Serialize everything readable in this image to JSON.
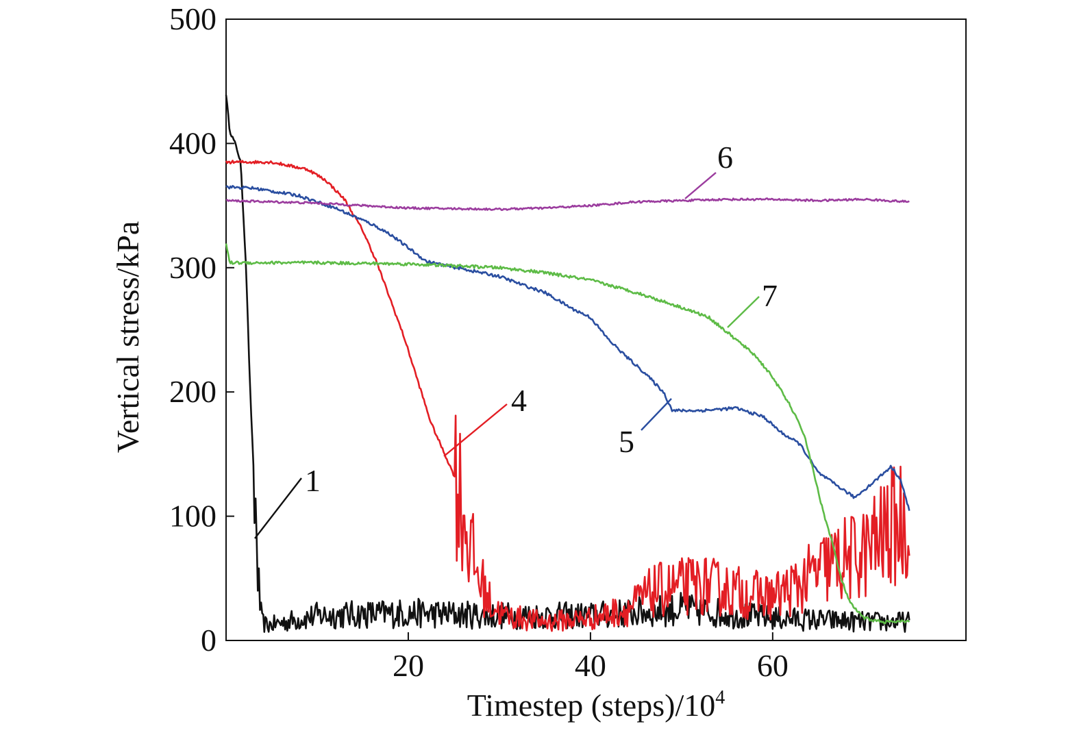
{
  "chart_data": {
    "type": "line",
    "title": "",
    "xlabel_main": "Timestep (steps)/10",
    "xlabel_sup": "4",
    "ylabel": "Vertical stress/kPa",
    "xlim": [
      0,
      80
    ],
    "ylim": [
      0,
      500
    ],
    "xticks": [
      20,
      40,
      60
    ],
    "xtick_labels": [
      "20",
      "40",
      "60"
    ],
    "yticks": [
      0,
      100,
      200,
      300,
      400,
      500
    ],
    "ytick_labels": [
      "0",
      "100",
      "200",
      "300",
      "400",
      "500"
    ],
    "grid": false,
    "series": [
      {
        "name": "1",
        "color": "#111111",
        "noisy_tail": true,
        "points": [
          [
            0,
            440
          ],
          [
            0.4,
            410
          ],
          [
            1.0,
            400
          ],
          [
            1.6,
            385
          ],
          [
            2.2,
            300
          ],
          [
            2.6,
            210
          ],
          [
            3.0,
            140
          ],
          [
            3.3,
            90
          ],
          [
            3.6,
            40
          ],
          [
            3.9,
            15
          ],
          [
            4.5,
            12
          ],
          [
            10,
            20
          ],
          [
            20,
            22
          ],
          [
            30,
            20
          ],
          [
            40,
            20
          ],
          [
            50,
            25
          ],
          [
            60,
            18
          ],
          [
            70,
            15
          ],
          [
            75,
            15
          ]
        ]
      },
      {
        "name": "4",
        "color": "#e31e24",
        "noisy_tail": true,
        "points": [
          [
            0,
            385
          ],
          [
            5,
            385
          ],
          [
            9,
            379
          ],
          [
            11,
            370
          ],
          [
            13,
            355
          ],
          [
            15,
            330
          ],
          [
            16.5,
            305
          ],
          [
            18,
            275
          ],
          [
            19.5,
            245
          ],
          [
            21,
            210
          ],
          [
            22.5,
            175
          ],
          [
            24,
            150
          ],
          [
            25.5,
            125
          ],
          [
            26.5,
            85
          ],
          [
            27.5,
            55
          ],
          [
            29,
            30
          ],
          [
            30.5,
            20
          ],
          [
            35,
            15
          ],
          [
            40,
            18
          ],
          [
            44,
            25
          ],
          [
            47,
            40
          ],
          [
            52,
            45
          ],
          [
            57,
            38
          ],
          [
            60,
            35
          ],
          [
            63,
            45
          ],
          [
            66,
            60
          ],
          [
            70,
            70
          ],
          [
            73,
            90
          ],
          [
            75,
            100
          ]
        ]
      },
      {
        "name": "5",
        "color": "#2a4ea0",
        "noisy_tail": false,
        "points": [
          [
            0,
            365
          ],
          [
            3,
            364
          ],
          [
            8,
            358
          ],
          [
            12,
            348
          ],
          [
            16,
            335
          ],
          [
            18,
            327
          ],
          [
            22,
            305
          ],
          [
            26,
            299
          ],
          [
            30,
            293
          ],
          [
            33,
            285
          ],
          [
            35,
            280
          ],
          [
            38,
            267
          ],
          [
            40,
            260
          ],
          [
            42,
            242
          ],
          [
            44,
            228
          ],
          [
            46,
            215
          ],
          [
            48,
            200
          ],
          [
            49,
            185
          ],
          [
            52,
            185
          ],
          [
            56,
            187
          ],
          [
            59,
            180
          ],
          [
            61,
            167
          ],
          [
            63,
            158
          ],
          [
            65,
            135
          ],
          [
            67,
            125
          ],
          [
            69,
            115
          ],
          [
            71,
            127
          ],
          [
            73,
            140
          ],
          [
            74,
            130
          ],
          [
            75,
            105
          ]
        ]
      },
      {
        "name": "6",
        "color": "#9b3c9e",
        "noisy_tail": false,
        "points": [
          [
            0,
            354
          ],
          [
            10,
            352
          ],
          [
            20,
            348
          ],
          [
            30,
            347
          ],
          [
            35,
            348
          ],
          [
            40,
            350
          ],
          [
            45,
            353
          ],
          [
            50,
            354
          ],
          [
            55,
            355
          ],
          [
            60,
            355
          ],
          [
            65,
            354
          ],
          [
            70,
            355
          ],
          [
            75,
            353
          ]
        ]
      },
      {
        "name": "7",
        "color": "#5dbb46",
        "noisy_tail": false,
        "points": [
          [
            0,
            320
          ],
          [
            0.4,
            304
          ],
          [
            10,
            304
          ],
          [
            20,
            303
          ],
          [
            30,
            300
          ],
          [
            35,
            296
          ],
          [
            40,
            290
          ],
          [
            45,
            280
          ],
          [
            50,
            268
          ],
          [
            53,
            260
          ],
          [
            55,
            248
          ],
          [
            58,
            230
          ],
          [
            60,
            212
          ],
          [
            62,
            188
          ],
          [
            63.5,
            165
          ],
          [
            64.5,
            135
          ],
          [
            65.5,
            105
          ],
          [
            66.5,
            80
          ],
          [
            67.5,
            50
          ],
          [
            68.5,
            30
          ],
          [
            70,
            18
          ],
          [
            72,
            15
          ],
          [
            75,
            15
          ]
        ]
      }
    ],
    "annotations": [
      {
        "text": "1",
        "series": "1"
      },
      {
        "text": "4",
        "series": "4"
      },
      {
        "text": "5",
        "series": "5"
      },
      {
        "text": "6",
        "series": "6"
      },
      {
        "text": "7",
        "series": "7"
      }
    ]
  }
}
